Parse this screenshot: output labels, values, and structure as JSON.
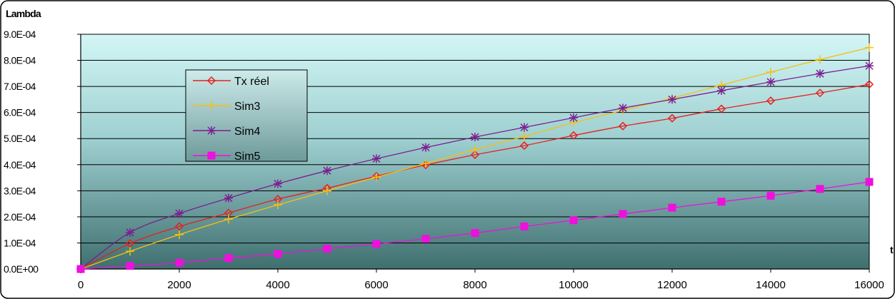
{
  "chart_data": {
    "type": "line",
    "ylabel": "Lambda",
    "xlabel": "t",
    "xlim": [
      0,
      16000
    ],
    "ylim": [
      0,
      0.0009
    ],
    "xticks": [
      "0",
      "2000",
      "4000",
      "6000",
      "8000",
      "10000",
      "12000",
      "14000",
      "16000"
    ],
    "yticks": [
      "0.0E+00",
      "1.0E-04",
      "2.0E-04",
      "3.0E-04",
      "4.0E-04",
      "5.0E-04",
      "6.0E-04",
      "7.0E-04",
      "8.0E-04",
      "9.0E-04"
    ],
    "x": [
      0,
      1000,
      2000,
      3000,
      4000,
      5000,
      6000,
      7000,
      8000,
      9000,
      10000,
      11000,
      12000,
      13000,
      14000,
      15000,
      16000
    ],
    "legend_position": "left-upper, inside plot",
    "grid": "horizontal",
    "series": [
      {
        "name": "Tx réel",
        "color": "#e8201e",
        "marker": "diamond",
        "values": [
          0,
          9.8e-05,
          0.000163,
          0.000215,
          0.000268,
          0.00031,
          0.000356,
          0.000399,
          0.000438,
          0.000473,
          0.000512,
          0.000548,
          0.000578,
          0.000614,
          0.000645,
          0.000675,
          0.000708
        ]
      },
      {
        "name": "Sim3",
        "color": "#f5c010",
        "marker": "plus",
        "values": [
          0,
          6.8e-05,
          0.000132,
          0.000191,
          0.000246,
          0.0003,
          0.000352,
          0.000405,
          0.000458,
          0.000508,
          0.000561,
          0.000608,
          0.000655,
          0.000705,
          0.000755,
          0.000803,
          0.000849
        ]
      },
      {
        "name": "Sim4",
        "color": "#7b2090",
        "marker": "asterisk",
        "values": [
          0,
          0.00014,
          0.000213,
          0.000272,
          0.000327,
          0.000377,
          0.000423,
          0.000466,
          0.000506,
          0.000543,
          0.00058,
          0.000617,
          0.00065,
          0.000684,
          0.000717,
          0.000749,
          0.000779
        ]
      },
      {
        "name": "Sim5",
        "color": "#ee10dd",
        "marker": "square",
        "values": [
          0,
          1.2e-05,
          2.4e-05,
          4.2e-05,
          5.8e-05,
          7.8e-05,
          9.6e-05,
          0.000116,
          0.000138,
          0.000163,
          0.000187,
          0.000211,
          0.000235,
          0.000258,
          0.000281,
          0.000307,
          0.000334
        ]
      }
    ]
  }
}
